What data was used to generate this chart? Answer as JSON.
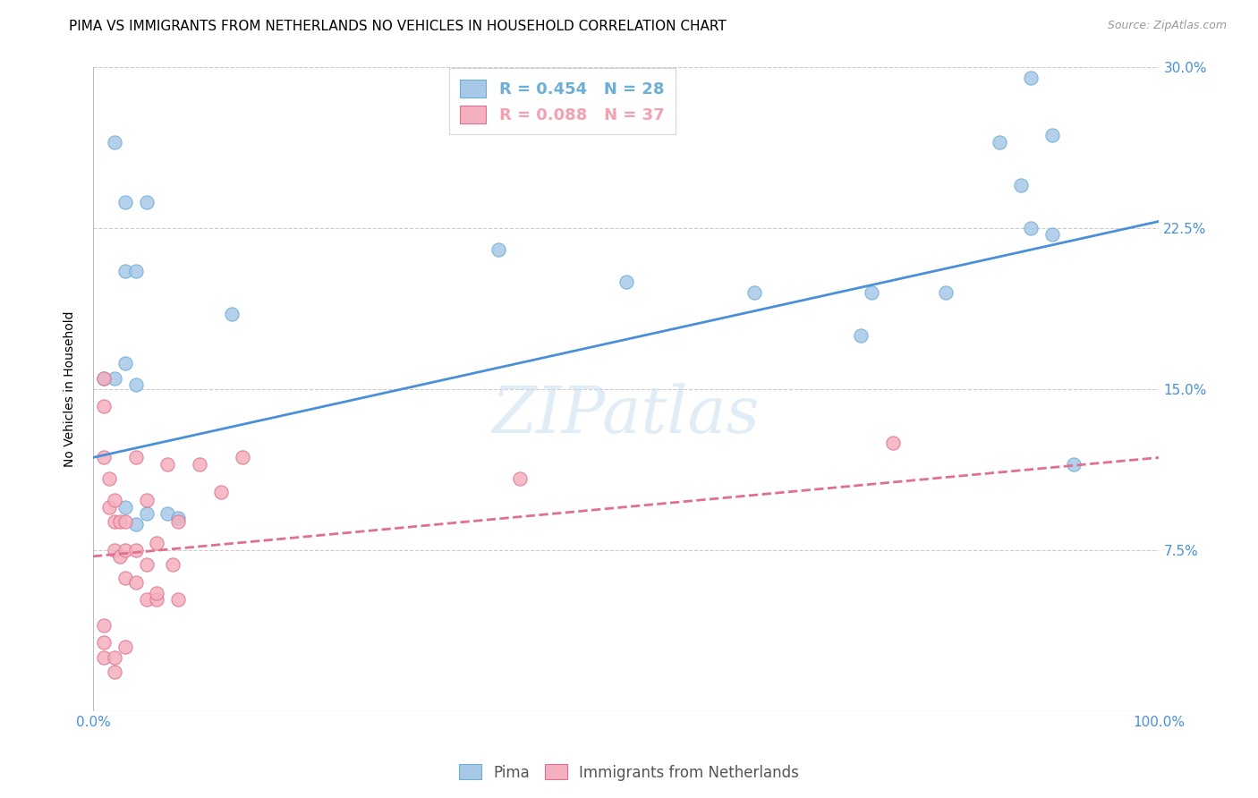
{
  "title": "PIMA VS IMMIGRANTS FROM NETHERLANDS NO VEHICLES IN HOUSEHOLD CORRELATION CHART",
  "source": "Source: ZipAtlas.com",
  "ylabel": "No Vehicles in Household",
  "xlim": [
    0,
    1.0
  ],
  "ylim": [
    0,
    0.3
  ],
  "xticks": [
    0.0,
    0.25,
    0.5,
    0.75,
    1.0
  ],
  "xticklabels": [
    "0.0%",
    "",
    "",
    "",
    "100.0%"
  ],
  "yticks": [
    0.0,
    0.075,
    0.15,
    0.225,
    0.3
  ],
  "yticklabels": [
    "",
    "7.5%",
    "15.0%",
    "22.5%",
    "30.0%"
  ],
  "legend_entries": [
    {
      "label": "R = 0.454   N = 28",
      "color": "#6BAED6"
    },
    {
      "label": "R = 0.088   N = 37",
      "color": "#F4A0B0"
    }
  ],
  "legend_labels": [
    "Pima",
    "Immigrants from Netherlands"
  ],
  "blue_scatter_x": [
    0.02,
    0.03,
    0.05,
    0.03,
    0.04,
    0.13,
    0.38,
    0.5,
    0.62,
    0.72,
    0.8,
    0.88,
    0.9,
    0.88,
    0.9,
    0.01,
    0.02,
    0.03,
    0.04,
    0.05,
    0.07,
    0.08,
    0.73,
    0.85,
    0.87,
    0.92,
    0.03,
    0.04
  ],
  "blue_scatter_y": [
    0.265,
    0.237,
    0.237,
    0.205,
    0.205,
    0.185,
    0.215,
    0.2,
    0.195,
    0.175,
    0.195,
    0.295,
    0.268,
    0.225,
    0.222,
    0.155,
    0.155,
    0.162,
    0.152,
    0.092,
    0.092,
    0.09,
    0.195,
    0.265,
    0.245,
    0.115,
    0.095,
    0.087
  ],
  "pink_scatter_x": [
    0.01,
    0.01,
    0.01,
    0.015,
    0.015,
    0.02,
    0.02,
    0.02,
    0.025,
    0.025,
    0.03,
    0.03,
    0.03,
    0.04,
    0.04,
    0.05,
    0.05,
    0.06,
    0.06,
    0.07,
    0.08,
    0.08,
    0.1,
    0.12,
    0.14,
    0.4,
    0.01,
    0.01,
    0.01,
    0.02,
    0.02,
    0.03,
    0.04,
    0.05,
    0.06,
    0.075,
    0.75
  ],
  "pink_scatter_y": [
    0.155,
    0.142,
    0.118,
    0.108,
    0.095,
    0.098,
    0.088,
    0.075,
    0.088,
    0.072,
    0.088,
    0.075,
    0.062,
    0.075,
    0.06,
    0.068,
    0.052,
    0.078,
    0.052,
    0.115,
    0.088,
    0.052,
    0.115,
    0.102,
    0.118,
    0.108,
    0.04,
    0.032,
    0.025,
    0.025,
    0.018,
    0.03,
    0.118,
    0.098,
    0.055,
    0.068,
    0.125
  ],
  "blue_line_x": [
    0.0,
    1.0
  ],
  "blue_line_y": [
    0.118,
    0.228
  ],
  "pink_line_x": [
    0.0,
    1.0
  ],
  "pink_line_y": [
    0.072,
    0.118
  ],
  "bg_color": "#FFFFFF",
  "grid_color": "#CCCCCC",
  "title_fontsize": 11,
  "label_fontsize": 10,
  "tick_fontsize": 11,
  "source_fontsize": 9,
  "scatter_size": 120,
  "blue_color": "#A8C8E8",
  "pink_color": "#F4B0BE",
  "blue_edge_color": "#6BAED6",
  "pink_edge_color": "#E07090",
  "blue_line_color": "#4A90D9",
  "pink_line_color": "#E07090",
  "watermark": "ZIPatlas",
  "tick_color": "#4A90D9"
}
